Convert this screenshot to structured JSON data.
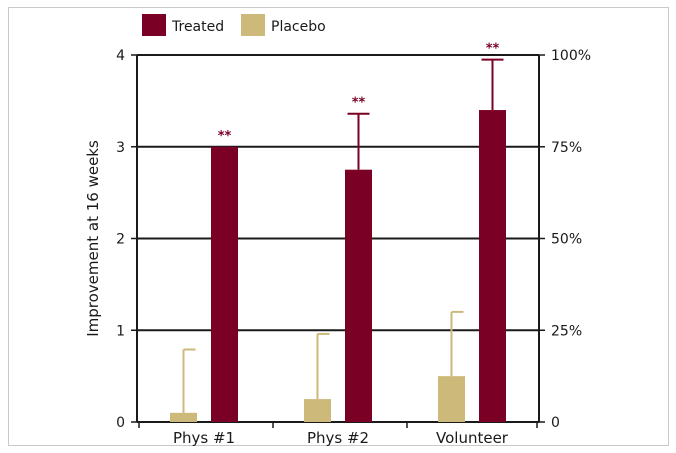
{
  "colors": {
    "treated": "#7a0025",
    "placebo": "#cdb979",
    "treated_star": "#7a0025",
    "axis": "#1a1a1a"
  },
  "chart_data": {
    "type": "bar",
    "title": "",
    "xlabel": "",
    "ylabel": "Improvement at 16 weeks",
    "ylim": [
      0,
      4
    ],
    "y_ticks": [
      "0",
      "1",
      "2",
      "3",
      "4"
    ],
    "y2_ticks": [
      "0",
      "25%",
      "50%",
      "75%",
      "100%"
    ],
    "grid": "horizontal at 1, 2, 3",
    "legend": "top-left",
    "categories": [
      "Phys #1",
      "Phys #2",
      "Volunteer"
    ],
    "series": [
      {
        "name": "Placebo",
        "values": [
          0.1,
          0.25,
          0.5
        ],
        "error_upper": [
          0.79,
          0.96,
          1.2
        ]
      },
      {
        "name": "Treated",
        "values": [
          3.0,
          2.75,
          3.4
        ],
        "error_upper": [
          3.0,
          3.36,
          3.95
        ]
      }
    ],
    "annotations": [
      "**",
      "**",
      "**"
    ]
  }
}
